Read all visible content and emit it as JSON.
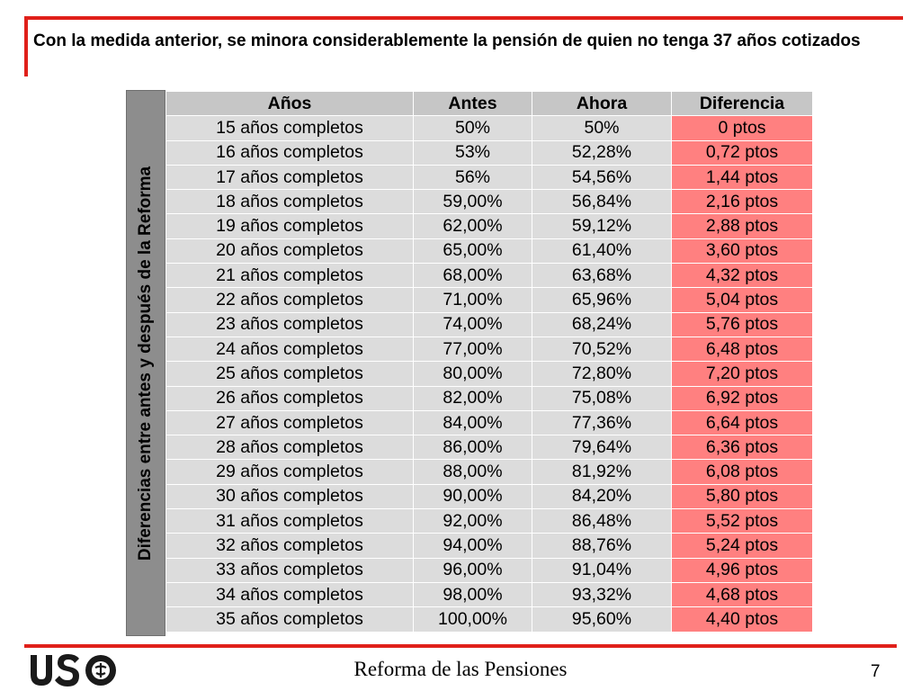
{
  "slide": {
    "title": "Con la medida anterior, se minora considerablemente la pensión de quien no tenga 37 años cotizados",
    "side_label": "Diferencias entre antes y después de la Reforma",
    "footer_title": "Reforma de las Pensiones",
    "page_number": "7",
    "logo_text": "USO"
  },
  "colors": {
    "accent": "#e0201a",
    "header_bg": "#c6c6c6",
    "cell_bg": "#dcdcdc",
    "diff_bg": "#ff8080",
    "sidebar_bg": "#8d8d8d"
  },
  "table": {
    "headers": [
      "Años",
      "Antes",
      "Ahora",
      "Diferencia"
    ],
    "rows": [
      [
        "15 años completos",
        "50%",
        "50%",
        "0 ptos"
      ],
      [
        "16 años completos",
        "53%",
        "52,28%",
        "0,72 ptos"
      ],
      [
        "17 años completos",
        "56%",
        "54,56%",
        "1,44 ptos"
      ],
      [
        "18 años completos",
        "59,00%",
        "56,84%",
        "2,16 ptos"
      ],
      [
        "19 años completos",
        "62,00%",
        "59,12%",
        "2,88 ptos"
      ],
      [
        "20 años completos",
        "65,00%",
        "61,40%",
        "3,60 ptos"
      ],
      [
        "21 años completos",
        "68,00%",
        "63,68%",
        "4,32 ptos"
      ],
      [
        "22 años completos",
        "71,00%",
        "65,96%",
        "5,04 ptos"
      ],
      [
        "23 años completos",
        "74,00%",
        "68,24%",
        "5,76 ptos"
      ],
      [
        "24 años completos",
        "77,00%",
        "70,52%",
        "6,48 ptos"
      ],
      [
        "25 años completos",
        "80,00%",
        "72,80%",
        "7,20 ptos"
      ],
      [
        "26 años completos",
        "82,00%",
        "75,08%",
        "6,92 ptos"
      ],
      [
        "27 años completos",
        "84,00%",
        "77,36%",
        "6,64 ptos"
      ],
      [
        "28 años completos",
        "86,00%",
        "79,64%",
        "6,36 ptos"
      ],
      [
        "29 años completos",
        "88,00%",
        "81,92%",
        "6,08 ptos"
      ],
      [
        "30 años completos",
        "90,00%",
        "84,20%",
        "5,80 ptos"
      ],
      [
        "31 años completos",
        "92,00%",
        "86,48%",
        "5,52 ptos"
      ],
      [
        "32 años completos",
        "94,00%",
        "88,76%",
        "5,24 ptos"
      ],
      [
        "33 años completos",
        "96,00%",
        "91,04%",
        "4,96 ptos"
      ],
      [
        "34 años completos",
        "98,00%",
        "93,32%",
        "4,68 ptos"
      ],
      [
        "35 años completos",
        "100,00%",
        "95,60%",
        "4,40 ptos"
      ]
    ]
  }
}
